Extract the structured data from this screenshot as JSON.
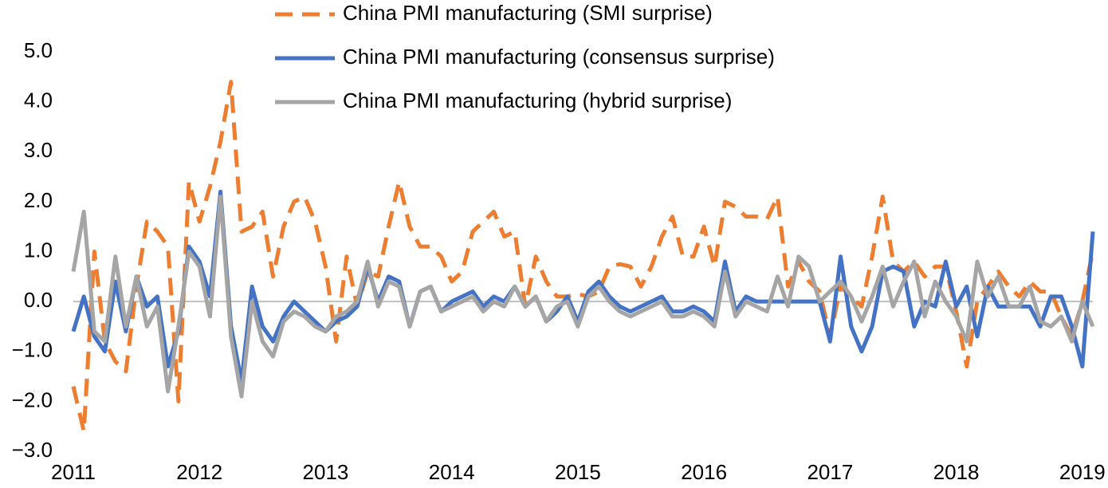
{
  "chart_data": {
    "type": "line",
    "categories": [
      "2011",
      null,
      null,
      null,
      null,
      null,
      null,
      null,
      null,
      null,
      null,
      null,
      "2012",
      null,
      null,
      null,
      null,
      null,
      null,
      null,
      null,
      null,
      null,
      null,
      "2013",
      null,
      null,
      null,
      null,
      null,
      null,
      null,
      null,
      null,
      null,
      null,
      "2014",
      null,
      null,
      null,
      null,
      null,
      null,
      null,
      null,
      null,
      null,
      null,
      "2015",
      null,
      null,
      null,
      null,
      null,
      null,
      null,
      null,
      null,
      null,
      null,
      "2016",
      null,
      null,
      null,
      null,
      null,
      null,
      null,
      null,
      null,
      null,
      null,
      "2017",
      null,
      null,
      null,
      null,
      null,
      null,
      null,
      null,
      null,
      null,
      null,
      "2018",
      null,
      null,
      null,
      null,
      null,
      null,
      null,
      null,
      null,
      null,
      null,
      "2019",
      null
    ],
    "series": [
      {
        "name": "China PMI manufacturing (SMI surprise)",
        "color": "#ed7d31",
        "dash": true,
        "values": [
          -1.7,
          -2.6,
          1.0,
          -0.8,
          -1.2,
          -1.4,
          0.3,
          1.6,
          1.4,
          1.1,
          -2.0,
          2.4,
          1.6,
          2.3,
          3.2,
          4.4,
          1.4,
          1.5,
          1.8,
          0.5,
          1.5,
          2.0,
          2.1,
          1.6,
          0.7,
          -0.8,
          0.9,
          -0.1,
          0.6,
          0.5,
          1.5,
          2.4,
          1.5,
          1.1,
          1.1,
          0.9,
          0.4,
          0.6,
          1.4,
          1.6,
          1.8,
          1.3,
          1.4,
          -0.1,
          0.9,
          0.4,
          0.1,
          0.1,
          0.15,
          0.1,
          0.2,
          0.7,
          0.75,
          0.7,
          0.3,
          0.7,
          1.3,
          1.7,
          0.9,
          0.9,
          1.5,
          0.7,
          2.0,
          1.9,
          1.7,
          1.7,
          1.65,
          2.1,
          0.3,
          0.8,
          0.4,
          0.2,
          -0.7,
          0.3,
          0.1,
          -0.1,
          0.9,
          2.1,
          0.8,
          0.6,
          0.8,
          0.5,
          0.7,
          0.7,
          -0.2,
          -1.3,
          0.0,
          0.3,
          0.6,
          0.3,
          0.1,
          0.4,
          0.2,
          0.2,
          -0.3,
          -0.7,
          0.0,
          1.0
        ]
      },
      {
        "name": "China PMI manufacturing (consensus surprise)",
        "color": "#4472c4",
        "dash": false,
        "values": [
          -0.6,
          0.1,
          -0.7,
          -1.0,
          0.4,
          -0.6,
          0.5,
          -0.1,
          0.1,
          -1.3,
          -0.6,
          1.1,
          0.8,
          0.1,
          2.2,
          -0.5,
          -1.6,
          0.3,
          -0.5,
          -0.8,
          -0.3,
          0.0,
          -0.2,
          -0.4,
          -0.6,
          -0.4,
          -0.3,
          -0.1,
          0.7,
          0.0,
          0.5,
          0.4,
          -0.5,
          0.2,
          0.3,
          -0.2,
          0.0,
          0.1,
          0.2,
          -0.1,
          0.1,
          0.0,
          0.3,
          -0.1,
          0.1,
          -0.4,
          -0.2,
          0.1,
          -0.4,
          0.2,
          0.4,
          0.1,
          -0.1,
          -0.2,
          -0.1,
          0.0,
          0.1,
          -0.2,
          -0.2,
          -0.1,
          -0.2,
          -0.4,
          0.8,
          -0.2,
          0.1,
          0.0,
          0.0,
          0.0,
          0.0,
          0.0,
          0.0,
          0.0,
          -0.8,
          0.9,
          -0.5,
          -1.0,
          -0.5,
          0.6,
          0.7,
          0.6,
          -0.5,
          0.0,
          -0.1,
          0.8,
          -0.1,
          0.3,
          -0.7,
          0.3,
          -0.1,
          -0.1,
          -0.1,
          -0.1,
          -0.5,
          0.1,
          0.1,
          -0.5,
          -1.3,
          1.4
        ]
      },
      {
        "name": "China PMI manufacturing (hybrid surprise)",
        "color": "#a5a5a5",
        "dash": false,
        "values": [
          0.6,
          1.8,
          -0.6,
          -0.8,
          0.9,
          -0.5,
          0.5,
          -0.5,
          -0.1,
          -1.8,
          -0.5,
          1.0,
          0.7,
          -0.3,
          2.1,
          -0.7,
          -1.9,
          0.0,
          -0.8,
          -1.1,
          -0.4,
          -0.2,
          -0.3,
          -0.5,
          -0.6,
          -0.3,
          -0.2,
          0.0,
          0.8,
          -0.1,
          0.4,
          0.3,
          -0.5,
          0.2,
          0.3,
          -0.2,
          -0.1,
          0.0,
          0.1,
          -0.2,
          0.0,
          -0.1,
          0.3,
          -0.1,
          0.1,
          -0.4,
          -0.1,
          0.0,
          -0.5,
          0.1,
          0.3,
          0.0,
          -0.2,
          -0.3,
          -0.2,
          -0.1,
          0.0,
          -0.3,
          -0.3,
          -0.2,
          -0.3,
          -0.5,
          0.6,
          -0.3,
          0.0,
          -0.1,
          -0.2,
          0.5,
          -0.1,
          0.9,
          0.7,
          0.0,
          0.2,
          0.4,
          0.1,
          -0.4,
          0.1,
          0.7,
          -0.1,
          0.4,
          0.8,
          -0.3,
          0.4,
          0.0,
          -0.3,
          -0.8,
          0.8,
          0.1,
          0.5,
          -0.1,
          -0.1,
          0.3,
          -0.4,
          -0.5,
          -0.3,
          -0.8,
          0.0,
          -0.5
        ]
      }
    ],
    "ylim": [
      -3,
      5
    ],
    "yticks": [
      {
        "value": -3,
        "label": "−3.0"
      },
      {
        "value": -2,
        "label": "−2.0"
      },
      {
        "value": -1,
        "label": "−1.0"
      },
      {
        "value": 0,
        "label": "0.0"
      },
      {
        "value": 1,
        "label": "1.0"
      },
      {
        "value": 2,
        "label": "2.0"
      },
      {
        "value": 3,
        "label": "3.0"
      },
      {
        "value": 4,
        "label": "4.0"
      },
      {
        "value": 5,
        "label": "5.0"
      }
    ],
    "grid": false,
    "legend": "top"
  }
}
